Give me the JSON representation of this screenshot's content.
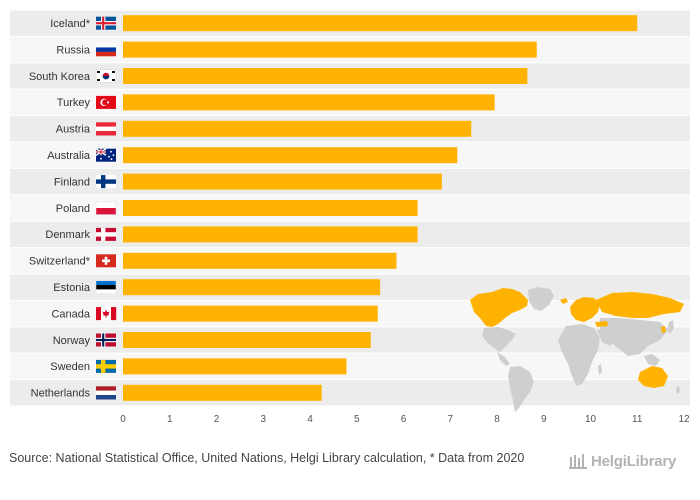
{
  "chart_data": {
    "type": "bar",
    "orientation": "horizontal",
    "categories": [
      "Iceland*",
      "Russia",
      "South Korea",
      "Turkey",
      "Austria",
      "Australia",
      "Finland",
      "Poland",
      "Denmark",
      "Switzerland*",
      "Estonia",
      "Canada",
      "Norway",
      "Sweden",
      "Netherlands"
    ],
    "flags": [
      "iceland",
      "russia",
      "south-korea",
      "turkey",
      "austria",
      "australia",
      "finland",
      "poland",
      "denmark",
      "switzerland",
      "estonia",
      "canada",
      "norway",
      "sweden",
      "netherlands"
    ],
    "values": [
      11.0,
      8.85,
      8.65,
      7.95,
      7.45,
      7.15,
      6.82,
      6.3,
      6.3,
      5.85,
      5.5,
      5.45,
      5.3,
      4.78,
      4.25
    ],
    "xlim": [
      0,
      12
    ],
    "xticks": [
      "0",
      "1",
      "2",
      "3",
      "4",
      "5",
      "6",
      "7",
      "8",
      "9",
      "10",
      "11",
      "12"
    ],
    "bar_color": "#FFB300",
    "row_band_colors": [
      "#ececec",
      "#f7f7f7"
    ],
    "grid": false,
    "title": "",
    "xlabel": "",
    "ylabel": ""
  },
  "source": "Source: National Statistical Office, United Nations, Helgi Library calculation, * Data from 2020",
  "logo": {
    "text": "HelgiLibrary",
    "icon": "library-columns-icon"
  },
  "map": {
    "icon": "world-map-icon",
    "land_color": "#cfcfcf",
    "highlight_color": "#FFB300"
  }
}
